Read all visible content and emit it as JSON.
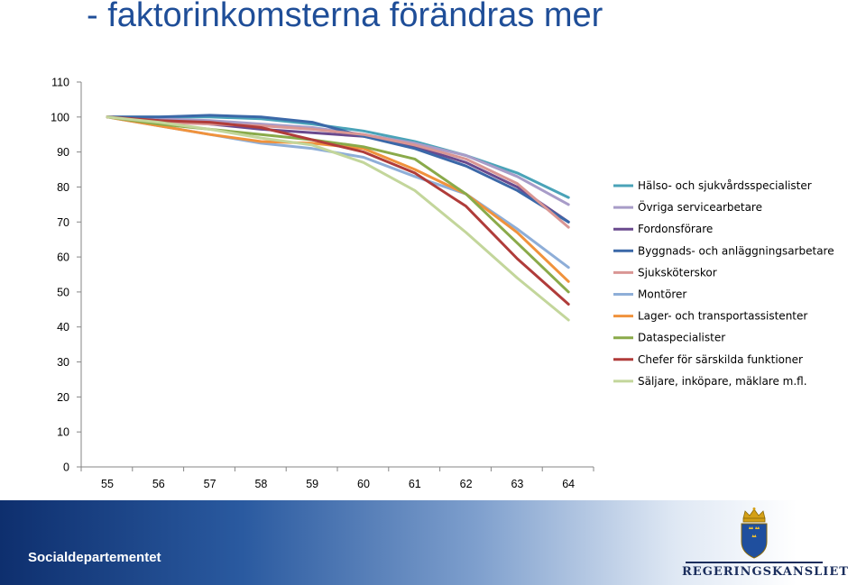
{
  "title": "- faktorinkomsterna förändras mer",
  "footer": {
    "department": "Socialdepartementet",
    "logo_text": "REGERINGSKANSLIET"
  },
  "chart_data": {
    "type": "line",
    "categories": [
      "55",
      "56",
      "57",
      "58",
      "59",
      "60",
      "61",
      "62",
      "63",
      "64"
    ],
    "ylim": [
      0,
      110
    ],
    "yticks": [
      0,
      10,
      20,
      30,
      40,
      50,
      60,
      70,
      80,
      90,
      100,
      110
    ],
    "grid": false,
    "legend_position": "right",
    "title": "",
    "xlabel": "",
    "ylabel": "",
    "series": [
      {
        "name": "Hälso- och sjukvårdsspecialister",
        "color": "#4aa3b8",
        "values": [
          100,
          100,
          100,
          99.5,
          98,
          96,
          93,
          89,
          84,
          77
        ]
      },
      {
        "name": "Övriga servicearbetare",
        "color": "#a89cc8",
        "values": [
          100,
          99.5,
          99,
          98,
          97,
          95,
          92.5,
          89,
          83,
          75
        ]
      },
      {
        "name": "Fordonsförare",
        "color": "#6a4a8e",
        "values": [
          100,
          99,
          98,
          96.5,
          95.5,
          94.5,
          91.5,
          87,
          80,
          70
        ]
      },
      {
        "name": "Byggnads- och anläggningsarbetare",
        "color": "#3b68a8",
        "values": [
          100,
          100,
          100.5,
          100,
          98.5,
          94.5,
          91,
          86,
          79,
          70
        ]
      },
      {
        "name": "Sjuksköterskor",
        "color": "#d99694",
        "values": [
          100,
          98.5,
          98,
          97.5,
          96.5,
          95,
          92,
          88,
          81,
          68.5
        ]
      },
      {
        "name": "Montörer",
        "color": "#8eaed8",
        "values": [
          100,
          97.5,
          95,
          92.5,
          91,
          88.5,
          83,
          78,
          68,
          57
        ]
      },
      {
        "name": "Lager- och transportassistenter",
        "color": "#f0923c",
        "values": [
          100,
          97.5,
          95,
          93,
          92.5,
          91,
          85,
          78,
          67,
          53
        ]
      },
      {
        "name": "Dataspecialister",
        "color": "#8aaa4a",
        "values": [
          100,
          98,
          96.5,
          95,
          93.5,
          91.5,
          88,
          78,
          64,
          50
        ]
      },
      {
        "name": "Chefer för särskilda funktioner",
        "color": "#b03c3a",
        "values": [
          100,
          99,
          98.5,
          97,
          93.5,
          90,
          84,
          74.5,
          59.5,
          46.5
        ]
      },
      {
        "name": "Säljare, inköpare, mäklare m.fl.",
        "color": "#c3d69b",
        "values": [
          100,
          98.5,
          96.5,
          94,
          92,
          87,
          79,
          67,
          54,
          42
        ]
      }
    ]
  }
}
